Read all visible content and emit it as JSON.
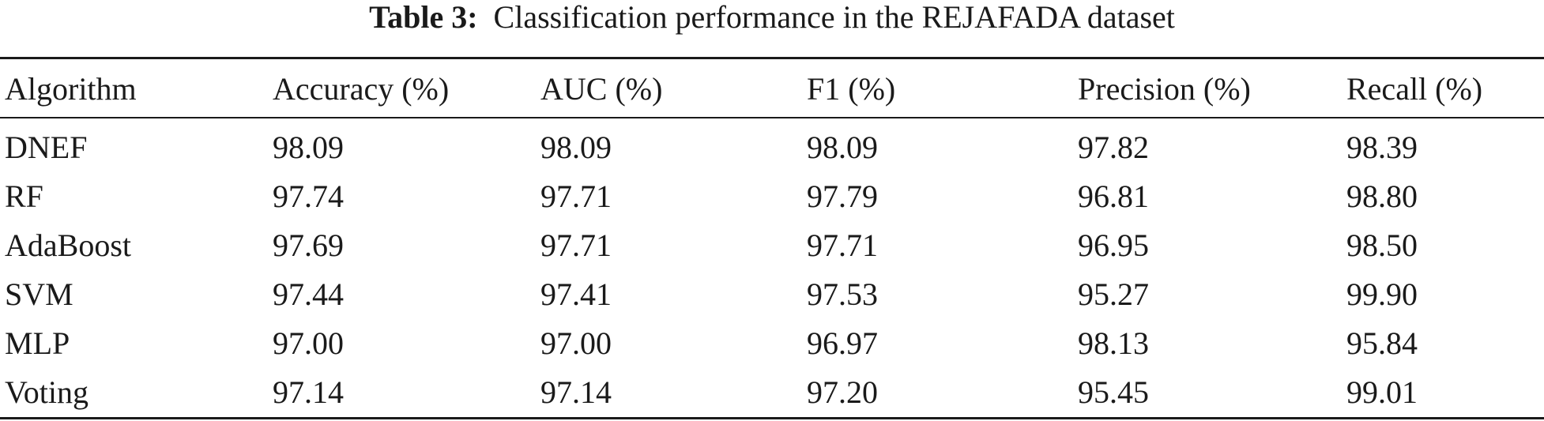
{
  "caption": {
    "label": "Table 3:",
    "text": "Classification performance in the REJAFADA dataset"
  },
  "table": {
    "headers": [
      "Algorithm",
      "Accuracy (%)",
      "AUC (%)",
      "F1 (%)",
      "Precision (%)",
      "Recall (%)"
    ],
    "rows": [
      [
        "DNEF",
        "98.09",
        "98.09",
        "98.09",
        "97.82",
        "98.39"
      ],
      [
        "RF",
        "97.74",
        "97.71",
        "97.79",
        "96.81",
        "98.80"
      ],
      [
        "AdaBoost",
        "97.69",
        "97.71",
        "97.71",
        "96.95",
        "98.50"
      ],
      [
        "SVM",
        "97.44",
        "97.41",
        "97.53",
        "95.27",
        "99.90"
      ],
      [
        "MLP",
        "97.00",
        "97.00",
        "96.97",
        "98.13",
        "95.84"
      ],
      [
        "Voting",
        "97.14",
        "97.14",
        "97.20",
        "95.45",
        "99.01"
      ]
    ]
  }
}
